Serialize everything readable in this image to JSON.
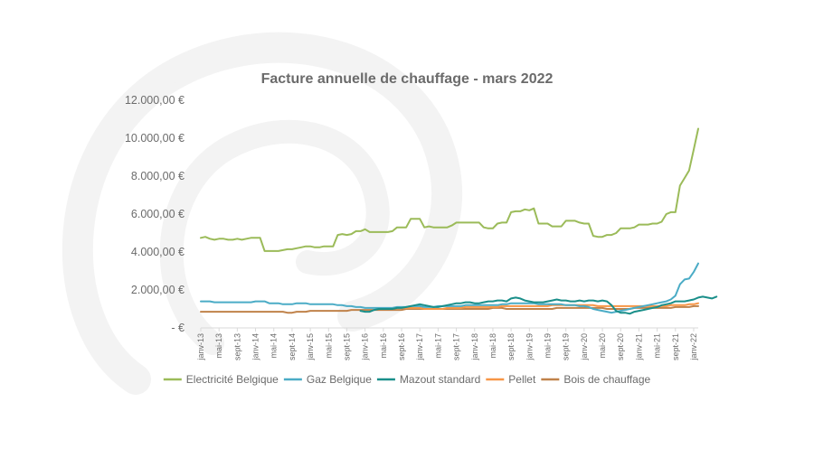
{
  "chart_data": {
    "type": "line",
    "title": "Facture annuelle de chauffage - mars 2022",
    "xlabel": "",
    "ylabel": "",
    "y_tick_labels": [
      "-   €",
      "2.000,00 €",
      "4.000,00 €",
      "6.000,00 €",
      "8.000,00 €",
      "10.000,00 €",
      "12.000,00 €"
    ],
    "y_ticks": [
      0,
      2000,
      4000,
      6000,
      8000,
      10000,
      12000
    ],
    "ylim": [
      0,
      12000
    ],
    "x_tick_labels": [
      "janv-13",
      "mai-13",
      "sept-13",
      "janv-14",
      "mai-14",
      "sept-14",
      "janv-15",
      "mai-15",
      "sept-15",
      "janv-16",
      "mai-16",
      "sept-16",
      "janv-17",
      "mai-17",
      "sept-17",
      "janv-18",
      "mai-18",
      "sept-18",
      "janv-19",
      "mai-19",
      "sept-19",
      "janv-20",
      "mai-20",
      "sept-20",
      "janv-21",
      "mai-21",
      "sept-21",
      "janv-22"
    ],
    "x_start": "2013-01",
    "x_step_months": 1,
    "grid": false,
    "legend_position": "bottom",
    "series": [
      {
        "name": "Electricité Belgique",
        "color": "#9bbb59",
        "values": [
          4750,
          4800,
          4700,
          4650,
          4700,
          4700,
          4650,
          4650,
          4700,
          4650,
          4700,
          4750,
          4750,
          4750,
          4050,
          4050,
          4050,
          4050,
          4100,
          4150,
          4150,
          4200,
          4250,
          4300,
          4300,
          4250,
          4250,
          4300,
          4300,
          4300,
          4900,
          4950,
          4900,
          4950,
          5100,
          5100,
          5200,
          5050,
          5050,
          5050,
          5050,
          5050,
          5100,
          5300,
          5300,
          5300,
          5750,
          5750,
          5750,
          5300,
          5350,
          5300,
          5300,
          5300,
          5300,
          5400,
          5550,
          5550,
          5550,
          5550,
          5550,
          5550,
          5300,
          5250,
          5250,
          5500,
          5550,
          5550,
          6100,
          6150,
          6150,
          6250,
          6200,
          6300,
          5500,
          5500,
          5500,
          5350,
          5350,
          5350,
          5650,
          5650,
          5650,
          5550,
          5500,
          5500,
          4850,
          4800,
          4800,
          4900,
          4900,
          5000,
          5250,
          5250,
          5250,
          5300,
          5450,
          5450,
          5450,
          5500,
          5500,
          5600,
          6000,
          6100,
          6100,
          7500,
          7900,
          8300,
          9400,
          10500
        ]
      },
      {
        "name": "Gaz Belgique",
        "color": "#4bacc6",
        "values": [
          1400,
          1400,
          1400,
          1350,
          1350,
          1350,
          1350,
          1350,
          1350,
          1350,
          1350,
          1350,
          1400,
          1400,
          1400,
          1300,
          1300,
          1300,
          1250,
          1250,
          1250,
          1300,
          1300,
          1300,
          1250,
          1250,
          1250,
          1250,
          1250,
          1250,
          1200,
          1200,
          1150,
          1150,
          1100,
          1100,
          1050,
          1050,
          1050,
          1050,
          1050,
          1050,
          1050,
          1100,
          1100,
          1100,
          1150,
          1150,
          1150,
          1100,
          1100,
          1100,
          1150,
          1150,
          1150,
          1150,
          1150,
          1150,
          1200,
          1200,
          1200,
          1200,
          1200,
          1200,
          1200,
          1200,
          1250,
          1250,
          1300,
          1300,
          1300,
          1300,
          1300,
          1300,
          1250,
          1250,
          1250,
          1250,
          1250,
          1250,
          1200,
          1200,
          1200,
          1150,
          1150,
          1100,
          1000,
          950,
          900,
          850,
          800,
          850,
          900,
          950,
          1000,
          1050,
          1100,
          1150,
          1200,
          1250,
          1300,
          1350,
          1400,
          1500,
          1700,
          2300,
          2550,
          2600,
          2950,
          3400
        ]
      },
      {
        "name": "Mazout standard",
        "color": "#1a8f8a",
        "values": [
          null,
          null,
          null,
          null,
          null,
          null,
          null,
          null,
          null,
          null,
          null,
          null,
          null,
          null,
          null,
          null,
          null,
          null,
          null,
          null,
          null,
          null,
          null,
          null,
          null,
          null,
          null,
          null,
          null,
          null,
          null,
          null,
          null,
          null,
          null,
          900,
          850,
          850,
          950,
          1000,
          1000,
          1000,
          1000,
          1050,
          1050,
          1100,
          1150,
          1200,
          1250,
          1200,
          1150,
          1100,
          1100,
          1150,
          1200,
          1250,
          1300,
          1300,
          1350,
          1350,
          1300,
          1300,
          1350,
          1400,
          1400,
          1450,
          1450,
          1400,
          1550,
          1600,
          1550,
          1450,
          1400,
          1350,
          1350,
          1350,
          1400,
          1450,
          1500,
          1450,
          1450,
          1400,
          1400,
          1450,
          1400,
          1450,
          1450,
          1400,
          1450,
          1400,
          1200,
          900,
          800,
          800,
          750,
          850,
          900,
          950,
          1000,
          1050,
          1100,
          1200,
          1250,
          1300,
          1400,
          1400,
          1400,
          1450,
          1500,
          1600,
          1650,
          1600,
          1550,
          1650
        ]
      },
      {
        "name": "Pellet",
        "color": "#f79646",
        "values": [
          null,
          null,
          null,
          null,
          null,
          null,
          null,
          null,
          null,
          null,
          null,
          null,
          null,
          null,
          null,
          null,
          null,
          null,
          null,
          null,
          null,
          null,
          null,
          null,
          null,
          null,
          null,
          null,
          null,
          null,
          null,
          null,
          null,
          null,
          null,
          null,
          null,
          null,
          null,
          null,
          null,
          1000,
          1000,
          1050,
          1050,
          1050,
          1050,
          1050,
          1050,
          1000,
          1000,
          1000,
          1000,
          1000,
          1050,
          1050,
          1050,
          1050,
          1100,
          1100,
          1100,
          1100,
          1100,
          1100,
          1100,
          1100,
          1150,
          1150,
          1150,
          1150,
          1150,
          1150,
          1150,
          1150,
          1150,
          1150,
          1150,
          1200,
          1200,
          1200,
          1200,
          1200,
          1200,
          1200,
          1200,
          1200,
          1200,
          1150,
          1150,
          1150,
          1150,
          1150,
          1150,
          1150,
          1150,
          1150,
          1150,
          1150,
          1150,
          1150,
          1150,
          1150,
          1150,
          1200,
          1200,
          1200,
          1200,
          1250,
          1250,
          1300
        ]
      },
      {
        "name": "Bois de chauffage",
        "color": "#c0824a",
        "values": [
          850,
          850,
          850,
          850,
          850,
          850,
          850,
          850,
          850,
          850,
          850,
          850,
          850,
          850,
          850,
          850,
          850,
          850,
          850,
          800,
          800,
          850,
          850,
          850,
          900,
          900,
          900,
          900,
          900,
          900,
          900,
          900,
          900,
          950,
          950,
          950,
          950,
          950,
          950,
          950,
          950,
          950,
          950,
          950,
          950,
          1000,
          1000,
          1000,
          1000,
          1000,
          1000,
          1000,
          1000,
          1000,
          1000,
          1000,
          1000,
          1000,
          1000,
          1000,
          1000,
          1000,
          1000,
          1000,
          1050,
          1050,
          1050,
          1000,
          1000,
          1000,
          1000,
          1000,
          1000,
          1000,
          1000,
          1000,
          1000,
          1000,
          1050,
          1050,
          1050,
          1050,
          1050,
          1050,
          1050,
          1050,
          1050,
          1050,
          1050,
          1000,
          1000,
          1000,
          1000,
          1000,
          1000,
          1050,
          1050,
          1050,
          1050,
          1050,
          1050,
          1050,
          1050,
          1050,
          1100,
          1100,
          1100,
          1100,
          1150,
          1150
        ]
      }
    ]
  }
}
